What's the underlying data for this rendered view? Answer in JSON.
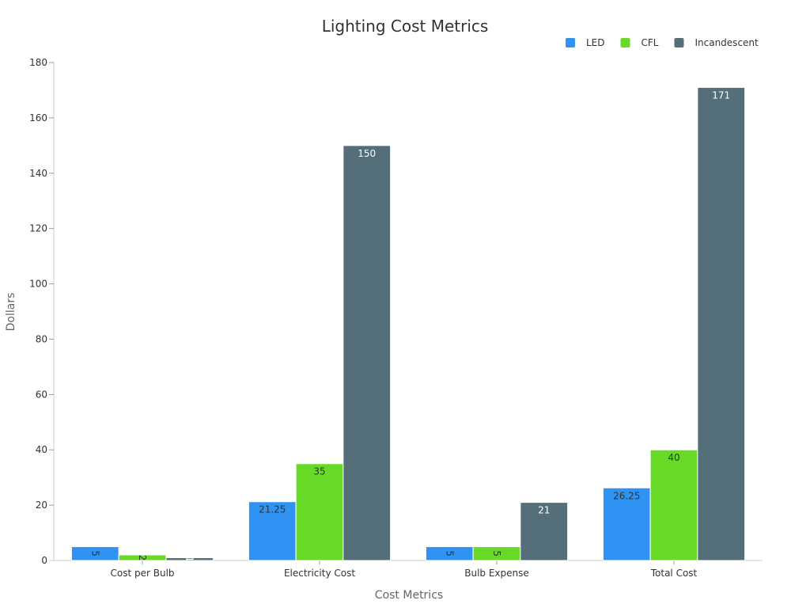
{
  "chart_data": {
    "type": "bar",
    "title": "Lighting Cost Metrics",
    "xlabel": "Cost Metrics",
    "ylabel": "Dollars",
    "categories": [
      "Cost per Bulb",
      "Electricity Cost",
      "Bulb Expense",
      "Total Cost"
    ],
    "series": [
      {
        "name": "LED",
        "color": "#2e93f2",
        "label_color": "#333333",
        "values": [
          5,
          21.25,
          5,
          26.25
        ]
      },
      {
        "name": "CFL",
        "color": "#66da26",
        "label_color": "#333333",
        "values": [
          2,
          35,
          5,
          40
        ]
      },
      {
        "name": "Incandescent",
        "color": "#546e7a",
        "label_color": "#ffffff",
        "values": [
          1,
          150,
          21,
          171
        ]
      }
    ],
    "ylim": [
      0,
      180
    ],
    "yticks": [
      0,
      20,
      40,
      60,
      80,
      100,
      120,
      140,
      160,
      180
    ],
    "legend_position": "top-right",
    "grid": false
  }
}
